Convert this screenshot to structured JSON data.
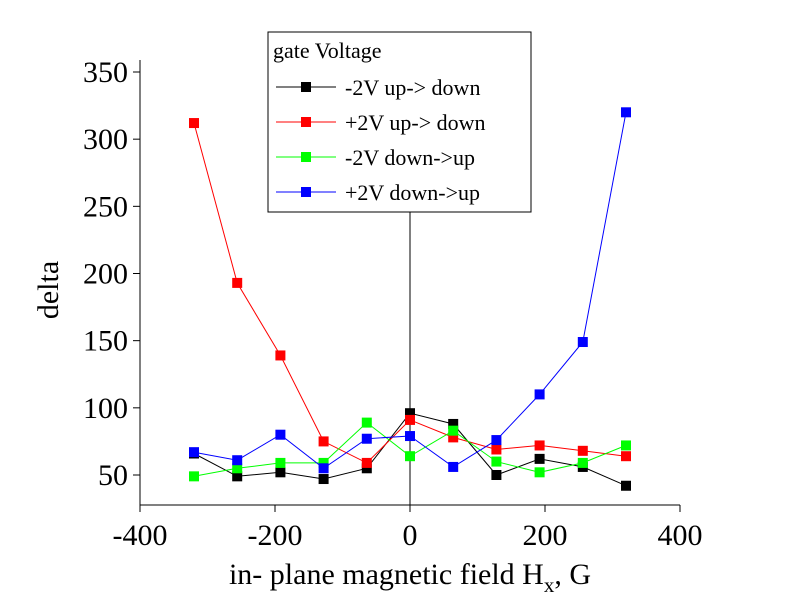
{
  "chart_data": {
    "type": "line",
    "title": "",
    "xlabel_main": "in- plane magnetic field H",
    "xlabel_sub": "x",
    "xlabel_tail": ", G",
    "ylabel": "delta",
    "xlim": [
      -400,
      400
    ],
    "ylim": [
      30,
      350
    ],
    "x_ticks": [
      -400,
      -200,
      0,
      200,
      400
    ],
    "y_ticks": [
      50,
      100,
      150,
      200,
      250,
      300,
      350
    ],
    "x_tick_labels": [
      "-400",
      "-200",
      "0",
      "200",
      "400"
    ],
    "y_tick_labels": [
      "50",
      "100",
      "150",
      "200",
      "250",
      "300",
      "350"
    ],
    "vertical_line_x": 0,
    "grid": false,
    "legend": {
      "title": "gate Voltage",
      "placement": "top-center"
    },
    "x": [
      -320,
      -256,
      -192,
      -128,
      -64,
      0,
      64,
      128,
      192,
      256,
      320
    ],
    "series": [
      {
        "name": "-2V up-> down",
        "color": "#000000",
        "values": [
          66,
          49,
          52,
          47,
          55,
          96,
          88,
          50,
          62,
          56,
          42
        ]
      },
      {
        "name": "+2V up-> down",
        "color": "#ff0000",
        "values": [
          312,
          193,
          139,
          75,
          59,
          91,
          78,
          69,
          72,
          68,
          64
        ]
      },
      {
        "name": "-2V down->up",
        "color": "#00ff00",
        "values": [
          49,
          55,
          59,
          59,
          89,
          64,
          83,
          60,
          52,
          59,
          72
        ]
      },
      {
        "name": "+2V down->up",
        "color": "#0000ff",
        "values": [
          67,
          61,
          80,
          55,
          77,
          79,
          56,
          76,
          110,
          149,
          320
        ]
      }
    ]
  }
}
